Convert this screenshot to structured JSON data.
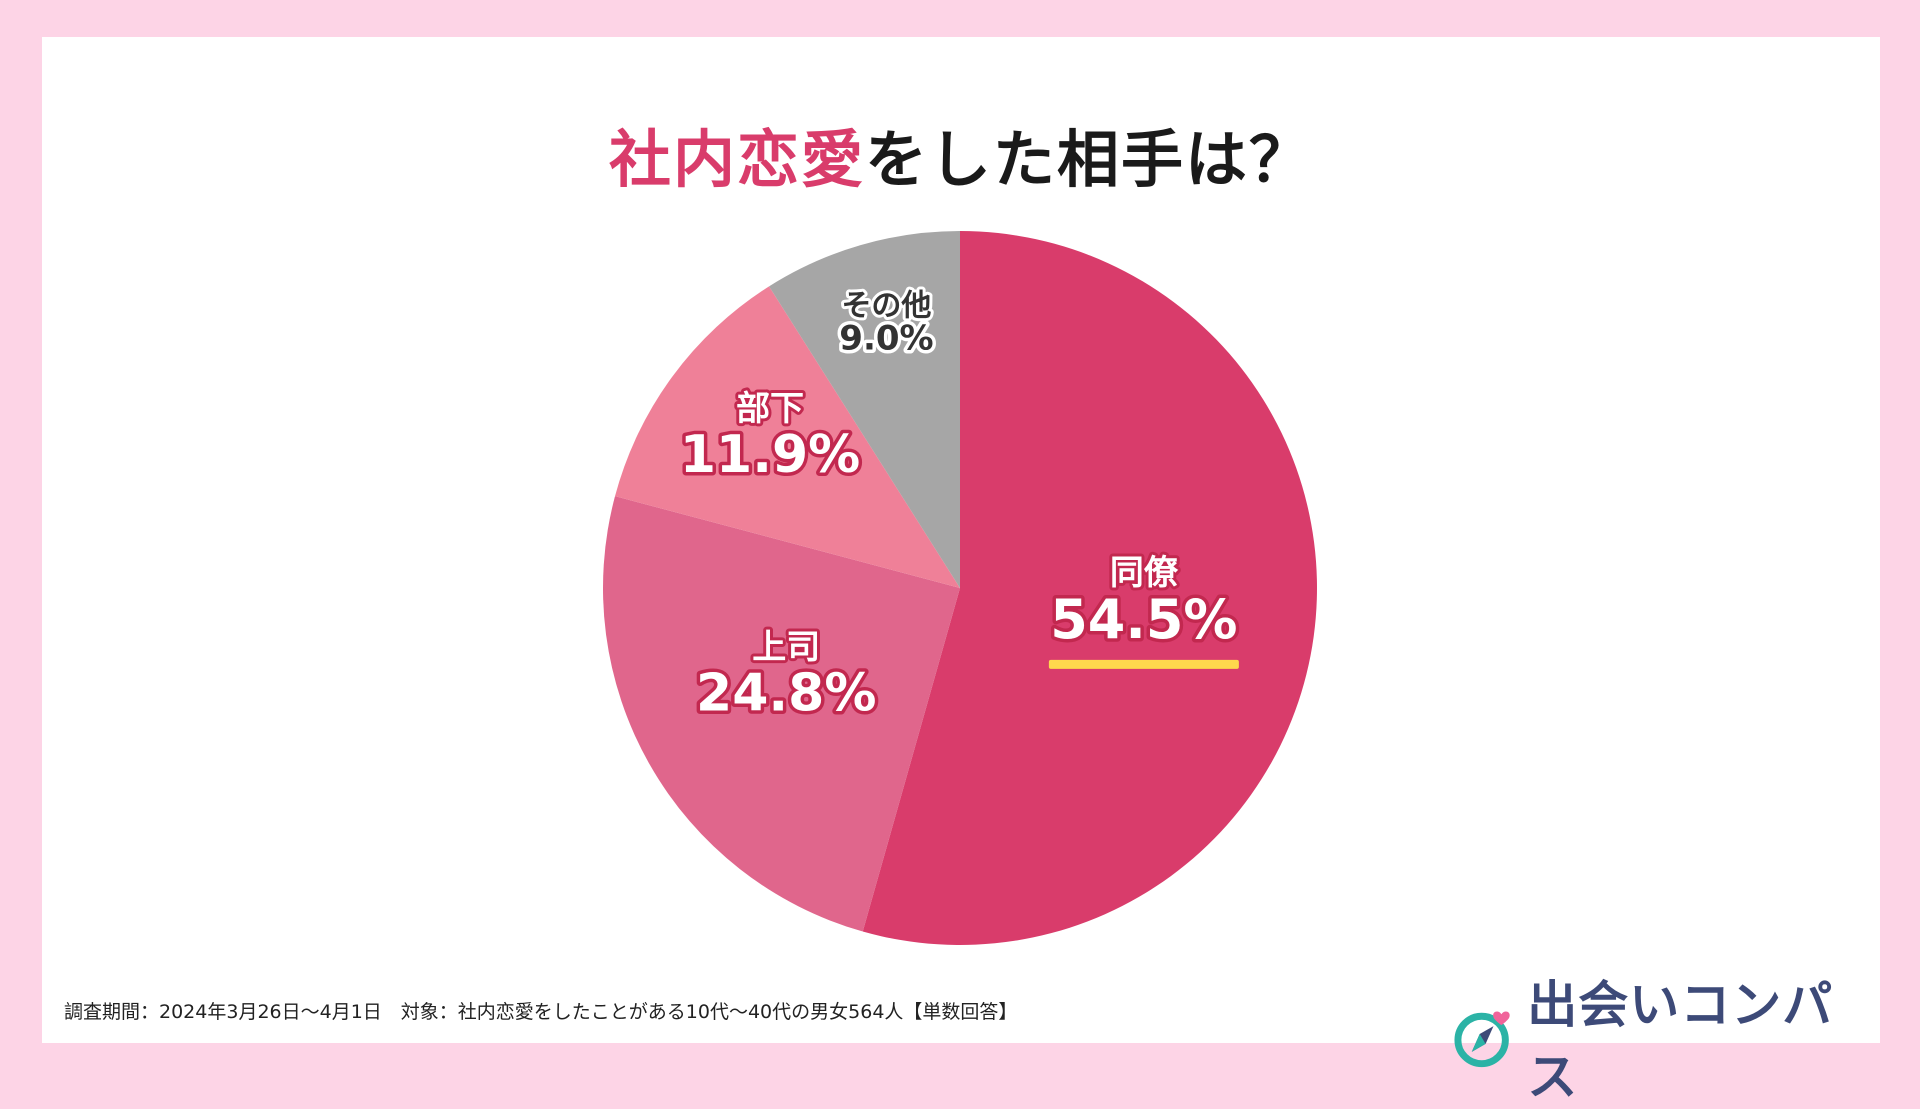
{
  "title": {
    "highlight": "社内恋愛",
    "rest": "をした相手は？"
  },
  "chart_data": {
    "type": "pie",
    "title": "社内恋愛をした相手は？",
    "start_angle_deg": 0,
    "direction": "clockwise",
    "slices": [
      {
        "label": "同僚",
        "value": 54.5,
        "value_text": "54.5%",
        "color": "#d93c6b",
        "highlight": true
      },
      {
        "label": "上司",
        "value": 24.8,
        "value_text": "24.8%",
        "color": "#e0668c"
      },
      {
        "label": "部下",
        "value": 11.9,
        "value_text": "11.9%",
        "color": "#ef8098"
      },
      {
        "label": "その他",
        "value": 9.0,
        "value_text": "9.0%",
        "color": "#a6a6a6"
      }
    ],
    "highlight_underline_color": "#ffd84d"
  },
  "footnote": "調査期間：2024年3月26日〜4月1日　対象：社内恋愛をしたことがある10代〜40代の男女564人【単数回答】",
  "logo": {
    "text": "出会いコンパス",
    "icon": "compass-heart-icon",
    "colors": {
      "ring": "#2bb3a6",
      "needle": "#3d4a78",
      "heart": "#f0649a"
    }
  }
}
